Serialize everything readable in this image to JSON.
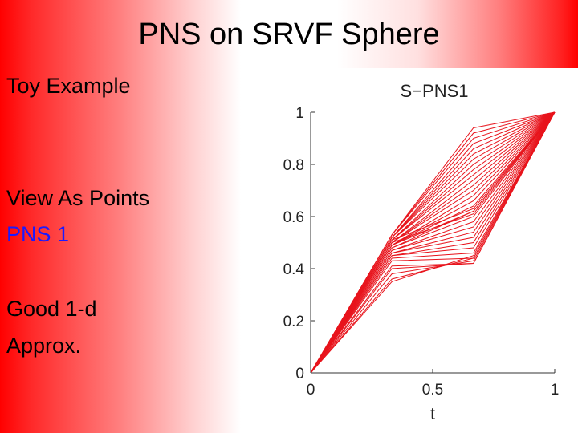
{
  "slide": {
    "title": "PNS on SRVF Sphere",
    "bullets": [
      {
        "text": "Toy Example",
        "highlight": false
      },
      {
        "text": "View As Points",
        "highlight": false
      },
      {
        "text": "PNS 1",
        "highlight": true
      },
      {
        "text": "Good 1-d",
        "highlight": false
      },
      {
        "text": "Approx.",
        "highlight": false
      }
    ],
    "colors": {
      "background": "#ff0000",
      "highlight_text": "#1a1aff",
      "curve": "#e8141c"
    }
  },
  "chart_data": {
    "type": "line",
    "title": "S−PNS1",
    "xlabel": "t",
    "ylabel": "",
    "xlim": [
      0,
      1
    ],
    "ylim": [
      0,
      1
    ],
    "xticks": [
      "0",
      "0.5",
      "1"
    ],
    "yticks": [
      "0",
      "0.2",
      "0.4",
      "0.6",
      "0.8",
      "1"
    ],
    "x": [
      0,
      0.333,
      0.667,
      1
    ],
    "series": [
      {
        "values": [
          0,
          0.53,
          0.94,
          1
        ]
      },
      {
        "values": [
          0,
          0.53,
          0.92,
          1
        ]
      },
      {
        "values": [
          0,
          0.53,
          0.9,
          1
        ]
      },
      {
        "values": [
          0,
          0.52,
          0.88,
          1
        ]
      },
      {
        "values": [
          0,
          0.52,
          0.86,
          1
        ]
      },
      {
        "values": [
          0,
          0.52,
          0.84,
          1
        ]
      },
      {
        "values": [
          0,
          0.52,
          0.82,
          1
        ]
      },
      {
        "values": [
          0,
          0.51,
          0.8,
          1
        ]
      },
      {
        "values": [
          0,
          0.51,
          0.78,
          1
        ]
      },
      {
        "values": [
          0,
          0.51,
          0.76,
          1
        ]
      },
      {
        "values": [
          0,
          0.5,
          0.74,
          1
        ]
      },
      {
        "values": [
          0,
          0.5,
          0.72,
          1
        ]
      },
      {
        "values": [
          0,
          0.5,
          0.7,
          1
        ]
      },
      {
        "values": [
          0,
          0.49,
          0.68,
          1
        ]
      },
      {
        "values": [
          0,
          0.49,
          0.66,
          1
        ]
      },
      {
        "values": [
          0,
          0.49,
          0.64,
          1
        ]
      },
      {
        "values": [
          0,
          0.48,
          0.62,
          1
        ]
      },
      {
        "values": [
          0,
          0.48,
          0.6,
          1
        ]
      },
      {
        "values": [
          0,
          0.47,
          0.58,
          1
        ]
      },
      {
        "values": [
          0,
          0.47,
          0.56,
          1
        ]
      },
      {
        "values": [
          0,
          0.46,
          0.54,
          1
        ]
      },
      {
        "values": [
          0,
          0.46,
          0.52,
          1
        ]
      },
      {
        "values": [
          0,
          0.45,
          0.5,
          1
        ]
      },
      {
        "values": [
          0,
          0.45,
          0.48,
          1
        ]
      },
      {
        "values": [
          0,
          0.44,
          0.46,
          1
        ]
      },
      {
        "values": [
          0,
          0.43,
          0.44,
          1
        ]
      },
      {
        "values": [
          0,
          0.41,
          0.42,
          1
        ]
      },
      {
        "values": [
          0,
          0.4,
          0.42,
          1
        ]
      },
      {
        "values": [
          0,
          0.38,
          0.43,
          1
        ]
      },
      {
        "values": [
          0,
          0.36,
          0.44,
          1
        ]
      },
      {
        "values": [
          0,
          0.35,
          0.45,
          1
        ]
      },
      {
        "values": [
          0,
          0.49,
          0.62,
          1
        ]
      },
      {
        "values": [
          0,
          0.5,
          0.61,
          1
        ]
      },
      {
        "values": [
          0,
          0.51,
          0.63,
          1
        ]
      }
    ]
  }
}
